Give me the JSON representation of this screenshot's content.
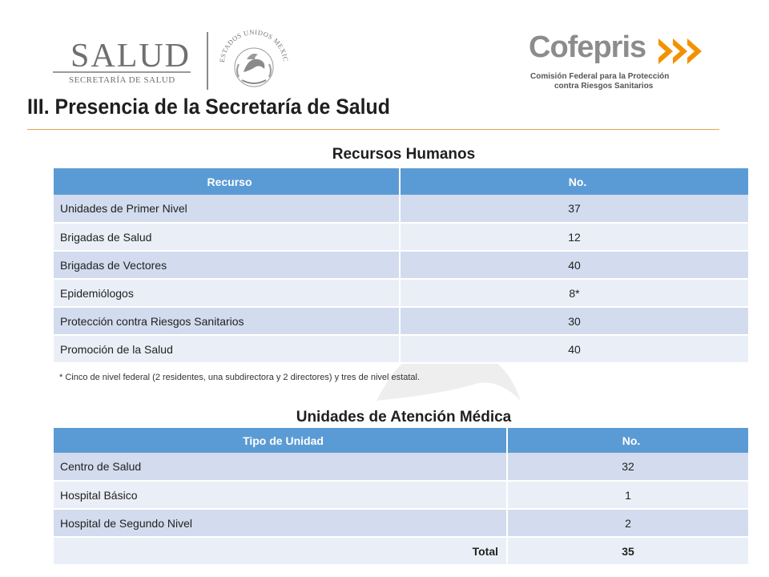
{
  "header": {
    "salud_logo": {
      "name": "SALUD",
      "subtitle": "SECRETARÍA DE SALUD"
    },
    "seal_text": "ESTADOS UNIDOS MEXICANOS",
    "cofepris_logo": {
      "name": "Cofepris",
      "line1": "Comisión Federal para la Protección",
      "line2": "contra Riesgos Sanitarios"
    }
  },
  "page_title": "III. Presencia de la Secretaría de Salud",
  "recursos": {
    "title": "Recursos Humanos",
    "headers": [
      "Recurso",
      "No."
    ],
    "rows": [
      {
        "label": "Unidades de Primer Nivel",
        "value": "37"
      },
      {
        "label": "Brigadas de Salud",
        "value": "12"
      },
      {
        "label": "Brigadas de Vectores",
        "value": "40"
      },
      {
        "label": "Epidemiólogos",
        "value": "8*"
      },
      {
        "label": "Protección contra Riesgos Sanitarios",
        "value": "30"
      },
      {
        "label": "Promoción de la Salud",
        "value": "40"
      }
    ],
    "footnote": "* Cinco de nivel federal (2 residentes, una subdirectora y 2 directores) y tres de nivel estatal."
  },
  "unidades": {
    "title": "Unidades de Atención Médica",
    "headers": [
      "Tipo de Unidad",
      "No."
    ],
    "rows": [
      {
        "label": "Centro de Salud",
        "value": "32"
      },
      {
        "label": "Hospital Básico",
        "value": "1"
      },
      {
        "label": "Hospital de Segundo Nivel",
        "value": "2"
      }
    ],
    "total": {
      "label": "Total",
      "value": "35"
    }
  },
  "colors": {
    "header_blue": "#5b9bd5",
    "row_dark": "#d2dcee",
    "row_light": "#eaeff7",
    "title_rule": "#e6a84c",
    "cofepris_orange": "#f39200"
  }
}
